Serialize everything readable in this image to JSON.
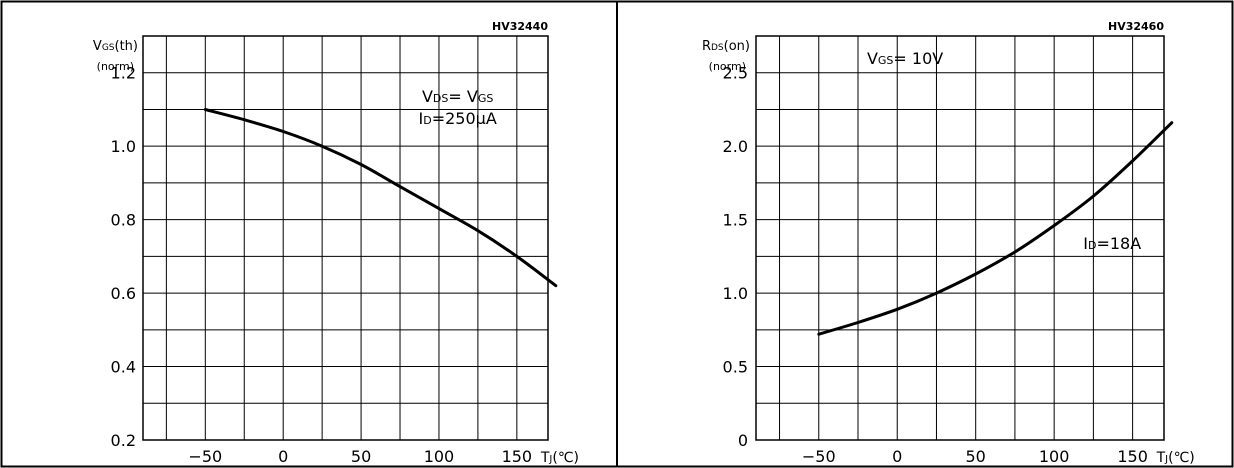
{
  "chart_data": [
    {
      "type": "line",
      "code": "HV32440",
      "ylabel_main": "V",
      "ylabel_sub": "GS",
      "ylabel_suffix": "(th)",
      "ylabel_norm": "(norm)",
      "xlabel_main": "T",
      "xlabel_sub": "J",
      "xlabel_suffix": "(℃)",
      "xlim": [
        -90,
        170
      ],
      "ylim": [
        0.2,
        1.3
      ],
      "xticks": [
        -50,
        0,
        50,
        100,
        150
      ],
      "xtick_labels": [
        "−50",
        "0",
        "50",
        "100",
        "150"
      ],
      "yticks": [
        0.2,
        0.4,
        0.6,
        0.8,
        1.0,
        1.2
      ],
      "ytick_labels": [
        "0.2",
        "0.4",
        "0.6",
        "0.8",
        "1.0",
        "1.2"
      ],
      "grid": true,
      "annotations": [
        {
          "main": "V",
          "sub": "DS",
          "rest": "= V",
          "sub2": "GS",
          "x": 112,
          "y": 1.12
        },
        {
          "main": "I",
          "sub": "D",
          "rest": "=250μA",
          "sub2": "",
          "x": 112,
          "y": 1.06
        }
      ],
      "series": [
        {
          "x": [
            -50,
            -25,
            0,
            25,
            50,
            75,
            100,
            125,
            150,
            175
          ],
          "y": [
            1.1,
            1.072,
            1.04,
            1.0,
            0.95,
            0.89,
            0.83,
            0.77,
            0.7,
            0.62
          ]
        }
      ]
    },
    {
      "type": "line",
      "code": "HV32460",
      "ylabel_main": "R",
      "ylabel_sub": "DS",
      "ylabel_suffix": "(on)",
      "ylabel_norm": "(norm)",
      "xlabel_main": "T",
      "xlabel_sub": "J",
      "xlabel_suffix": "(℃)",
      "xlim": [
        -90,
        170
      ],
      "ylim": [
        0,
        2.75
      ],
      "xticks": [
        -50,
        0,
        50,
        100,
        150
      ],
      "xtick_labels": [
        "−50",
        "0",
        "50",
        "100",
        "150"
      ],
      "yticks": [
        0,
        0.5,
        1.0,
        1.5,
        2.0,
        2.5
      ],
      "ytick_labels": [
        "0",
        "0.5",
        "1.0",
        "1.5",
        "2.0",
        "2.5"
      ],
      "grid": true,
      "annotations": [
        {
          "main": "V",
          "sub": "GS",
          "rest": "= 10V",
          "sub2": "",
          "x": 5,
          "y": 2.56
        },
        {
          "main": "I",
          "sub": "D",
          "rest": "=18A",
          "sub2": "",
          "x": 137,
          "y": 1.3
        }
      ],
      "series": [
        {
          "x": [
            -50,
            -25,
            0,
            25,
            50,
            75,
            100,
            125,
            150,
            175
          ],
          "y": [
            0.72,
            0.8,
            0.89,
            1.0,
            1.13,
            1.28,
            1.46,
            1.66,
            1.9,
            2.16
          ]
        }
      ]
    }
  ]
}
